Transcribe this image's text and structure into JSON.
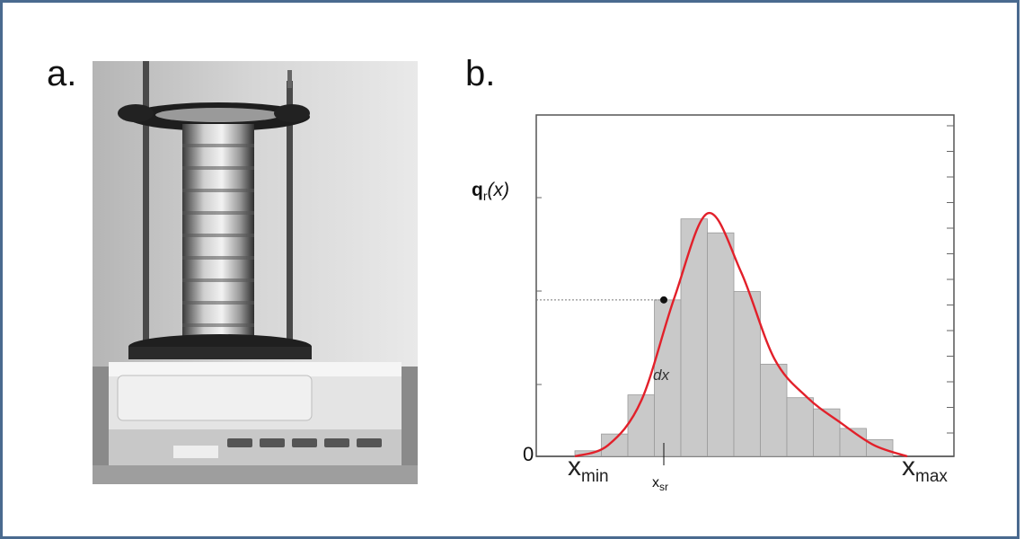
{
  "panel_a": {
    "label": "a."
  },
  "panel_b": {
    "label": "b.",
    "ylabel_main": "q",
    "ylabel_sub": "r",
    "ylabel_arg": "(x)",
    "zero_label": "0",
    "dx_label": "dx",
    "x_left_main": "x",
    "x_left_sub": "min",
    "x_right_main": "x",
    "x_right_sub": "max",
    "xsr_main": "x",
    "xsr_sub": "sr"
  },
  "colors": {
    "curve": "#e2202a",
    "bars": "#c9c9c9",
    "frame": "#4a6a8f"
  },
  "chart_data": {
    "type": "bar",
    "bars": [
      2,
      8,
      22,
      56,
      85,
      80,
      59,
      33,
      21,
      17,
      10,
      6
    ],
    "curve": [
      0,
      4,
      20,
      57,
      87,
      66,
      35,
      21,
      12,
      4,
      0
    ],
    "marker_value": 56,
    "xlabel": "",
    "ylabel": "q_r(x)"
  }
}
